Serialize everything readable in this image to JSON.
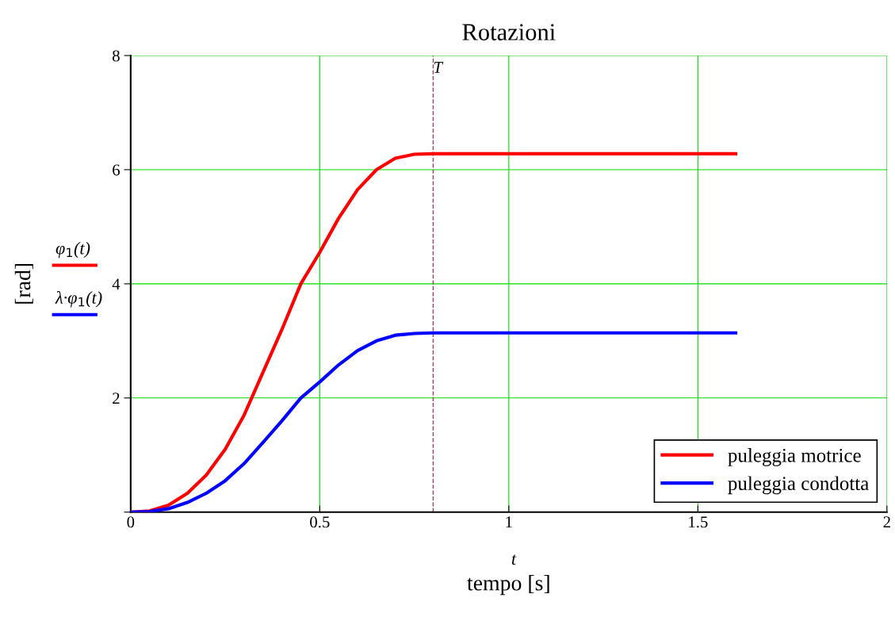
{
  "chart_data": {
    "type": "line",
    "title": "Rotazioni",
    "xlabel": "tempo [s]",
    "ylabel": "[rad]",
    "x": [
      0,
      0.05,
      0.1,
      0.15,
      0.2,
      0.25,
      0.3,
      0.35,
      0.4,
      0.45,
      0.5,
      0.55,
      0.6,
      0.65,
      0.7,
      0.75,
      0.8,
      1.6
    ],
    "series": [
      {
        "name": "puleggia motrice",
        "color": "#ff0000",
        "values": [
          0,
          0.02,
          0.12,
          0.33,
          0.65,
          1.1,
          1.7,
          2.45,
          3.2,
          4.0,
          4.55,
          5.15,
          5.65,
          6.0,
          6.2,
          6.27,
          6.28,
          6.28
        ]
      },
      {
        "name": "puleggia condotta",
        "color": "#0000ff",
        "values": [
          0,
          0.01,
          0.06,
          0.17,
          0.33,
          0.55,
          0.85,
          1.22,
          1.6,
          2.0,
          2.28,
          2.58,
          2.83,
          3.0,
          3.1,
          3.13,
          3.14,
          3.14
        ]
      }
    ],
    "xlim": [
      0,
      2
    ],
    "xticks": [
      0,
      0.5,
      1,
      1.5,
      2
    ],
    "ylim": [
      0,
      8
    ],
    "yticks": [
      {
        "value": 0,
        "label": null
      },
      2,
      4,
      6,
      8
    ],
    "ref_lines": [
      {
        "axis": "x",
        "value": 0.8,
        "label": "T",
        "color": "#a04060",
        "line_style": "dashed"
      }
    ],
    "annotations": [
      "t",
      "φ$_{1}$(t)",
      "λ·φ$_{1}$(t)"
    ],
    "grid": true,
    "legend": "bottom right",
    "line_style": "solid",
    "marker": "none"
  }
}
